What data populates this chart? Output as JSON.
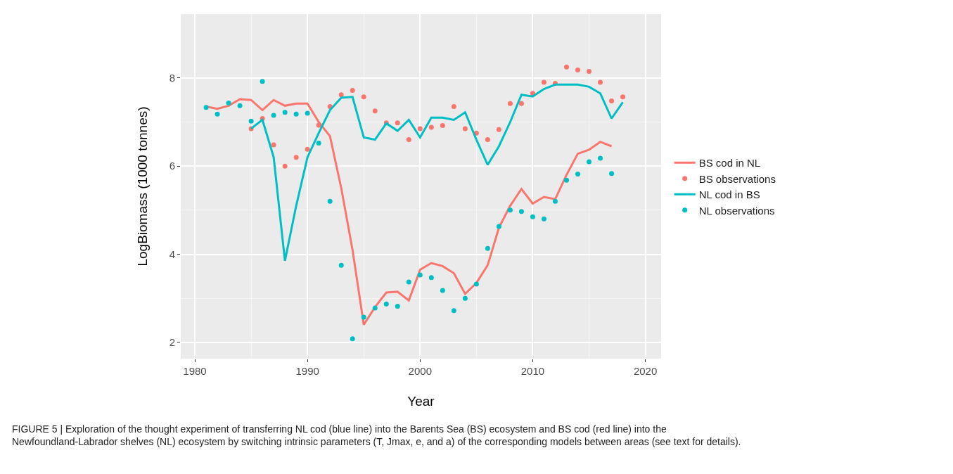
{
  "chart_data": {
    "type": "line",
    "xlabel": "Year",
    "ylabel": "LogBiomass (1000 tonnes)",
    "xlim": [
      1978.75,
      2021.4
    ],
    "xticks": [
      1980,
      1990,
      2000,
      2010,
      2020
    ],
    "ylim": [
      1.63,
      9.45
    ],
    "yticks": [
      2,
      4,
      6,
      8
    ],
    "grid": true,
    "legend": "right",
    "series": [
      {
        "name": "BS cod in NL",
        "color": "#f8766d",
        "x": [
          1981,
          1982,
          1983,
          1984,
          1985,
          1986,
          1987,
          1988,
          1989,
          1990,
          1991,
          1992,
          1993,
          1994,
          1995,
          1996,
          1997,
          1998,
          1999,
          2000,
          2001,
          2002,
          2003,
          2004,
          2005,
          2006,
          2007,
          2008,
          2009,
          2010,
          2011,
          2012,
          2013,
          2014,
          2015,
          2016,
          2017
        ],
        "values": [
          7.35,
          7.3,
          7.37,
          7.52,
          7.5,
          7.27,
          7.5,
          7.37,
          7.42,
          7.42,
          7.0,
          6.68,
          5.5,
          4.1,
          2.4,
          2.8,
          3.13,
          3.15,
          2.95,
          3.65,
          3.8,
          3.73,
          3.57,
          3.1,
          3.35,
          3.75,
          4.6,
          5.1,
          5.48,
          5.15,
          5.3,
          5.25,
          5.8,
          6.28,
          6.37,
          6.55,
          6.45
        ]
      },
      {
        "name": "BS observations",
        "type": "scatter",
        "color": "#f8766d",
        "x": [
          1985,
          1986,
          1987,
          1988,
          1989,
          1990,
          1991,
          1992,
          1993,
          1994,
          1995,
          1996,
          1997,
          1998,
          1999,
          2000,
          2001,
          2002,
          2003,
          2004,
          2005,
          2006,
          2007,
          2008,
          2009,
          2010,
          2011,
          2012,
          2013,
          2014,
          2015,
          2016,
          2017,
          2018
        ],
        "values": [
          6.85,
          7.08,
          6.48,
          6.0,
          6.2,
          6.38,
          6.93,
          7.35,
          7.62,
          7.72,
          7.57,
          7.25,
          6.98,
          6.98,
          6.6,
          6.85,
          6.88,
          6.92,
          7.35,
          6.85,
          6.75,
          6.6,
          6.83,
          7.42,
          7.42,
          7.65,
          7.9,
          7.88,
          8.25,
          8.18,
          8.15,
          7.9,
          7.48,
          7.57
        ]
      },
      {
        "name": "NL cod in BS",
        "color": "#00bfc4",
        "x": [
          1985,
          1986,
          1987,
          1988,
          1989,
          1990,
          1991,
          1992,
          1993,
          1994,
          1995,
          1996,
          1997,
          1998,
          1999,
          2000,
          2001,
          2002,
          2003,
          2004,
          2005,
          2006,
          2007,
          2008,
          2009,
          2010,
          2011,
          2012,
          2013,
          2014,
          2015,
          2016,
          2017,
          2018
        ],
        "values": [
          6.85,
          7.05,
          6.2,
          3.85,
          5.1,
          6.2,
          6.75,
          7.27,
          7.55,
          7.57,
          6.65,
          6.6,
          6.97,
          6.8,
          7.05,
          6.65,
          7.1,
          7.1,
          7.05,
          7.22,
          6.6,
          6.03,
          6.45,
          7.0,
          7.62,
          7.58,
          7.75,
          7.85,
          7.85,
          7.85,
          7.8,
          7.65,
          7.08,
          7.45
        ]
      },
      {
        "name": "NL observations",
        "type": "scatter",
        "color": "#00bfc4",
        "x": [
          1981,
          1982,
          1983,
          1984,
          1985,
          1986,
          1987,
          1988,
          1989,
          1990,
          1991,
          1992,
          1993,
          1994,
          1995,
          1996,
          1997,
          1998,
          1999,
          2000,
          2001,
          2002,
          2003,
          2004,
          2005,
          2006,
          2007,
          2008,
          2009,
          2010,
          2011,
          2012,
          2013,
          2014,
          2015,
          2016,
          2017
        ],
        "values": [
          7.33,
          7.18,
          7.43,
          7.37,
          7.02,
          7.92,
          7.15,
          7.22,
          7.18,
          7.2,
          6.52,
          5.2,
          3.75,
          2.08,
          2.57,
          2.78,
          2.87,
          2.82,
          3.37,
          3.53,
          3.47,
          3.18,
          2.72,
          3.0,
          3.32,
          4.13,
          4.63,
          5.0,
          4.97,
          4.85,
          4.8,
          5.2,
          5.68,
          5.82,
          6.1,
          6.18,
          5.83
        ]
      }
    ],
    "annotations": [
      "FIGURE 5 | Exploration of the thought experiment of transferring NL cod (blue line) into the Barents Sea (BS) ecosystem and BS cod (red line) into the Newfoundland-Labrador shelves (NL) ecosystem by switching intrinsic parameters (T, Jmax, e, and a) of the corresponding models between areas (see text for details)."
    ]
  }
}
